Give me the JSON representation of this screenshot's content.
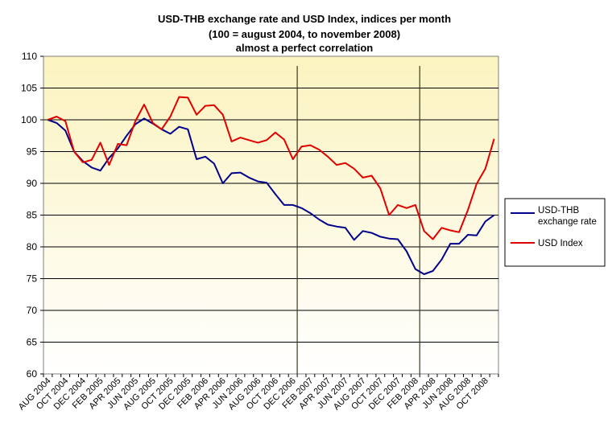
{
  "chart_data": {
    "type": "line",
    "title_lines": [
      "USD-THB exchange rate and USD Index, indices per month",
      "(100 = august 2004, to november 2008)",
      "almost a perfect  correlation"
    ],
    "xlabel": "",
    "ylabel": "",
    "ylim": [
      60,
      110
    ],
    "yticks": [
      60,
      65,
      70,
      75,
      80,
      85,
      90,
      95,
      100,
      105,
      110
    ],
    "grid": "horizontal",
    "legend_position": "right",
    "vertical_markers": [
      "JAN 2007",
      "MAR 2008"
    ],
    "x_tick_labels": [
      "AUG 2004",
      "OCT 2004",
      "DEC 2004",
      "FEB 2005",
      "APR 2005",
      "JUN 2005",
      "AUG 2005",
      "OCT 2005",
      "DEC 2005",
      "FEB 2006",
      "APR 2006",
      "JUN 2006",
      "AUG 2006",
      "OCT 2006",
      "DEC 2006",
      "FEB 2007",
      "APR 2007",
      "JUN 2007",
      "AUG 2007",
      "OCT 2007",
      "DEC 2007",
      "FEB 2008",
      "APR 2008",
      "JUN 2008",
      "AUG 2008",
      "OCT 2008"
    ],
    "x": [
      "AUG 2004",
      "SEP 2004",
      "OCT 2004",
      "NOV 2004",
      "DEC 2004",
      "JAN 2005",
      "FEB 2005",
      "MAR 2005",
      "APR 2005",
      "MAY 2005",
      "JUN 2005",
      "JUL 2005",
      "AUG 2005",
      "SEP 2005",
      "OCT 2005",
      "NOV 2005",
      "DEC 2005",
      "JAN 2006",
      "FEB 2006",
      "MAR 2006",
      "APR 2006",
      "MAY 2006",
      "JUN 2006",
      "JUL 2006",
      "AUG 2006",
      "SEP 2006",
      "OCT 2006",
      "NOV 2006",
      "DEC 2006",
      "JAN 2007",
      "FEB 2007",
      "MAR 2007",
      "APR 2007",
      "MAY 2007",
      "JUN 2007",
      "JUL 2007",
      "AUG 2007",
      "SEP 2007",
      "OCT 2007",
      "NOV 2007",
      "DEC 2007",
      "JAN 2008",
      "FEB 2008",
      "MAR 2008",
      "APR 2008",
      "MAY 2008",
      "JUN 2008",
      "JUL 2008",
      "AUG 2008",
      "SEP 2008",
      "OCT 2008",
      "NOV 2008"
    ],
    "series": [
      {
        "name": "USD-THB exchange rate",
        "color": "#00008b",
        "values": [
          100.0,
          99.5,
          98.3,
          95.0,
          93.5,
          92.5,
          92.0,
          94.0,
          95.5,
          97.5,
          99.3,
          100.2,
          99.4,
          98.5,
          97.8,
          98.9,
          98.5,
          93.8,
          94.2,
          93.1,
          90.0,
          91.6,
          91.7,
          90.9,
          90.3,
          90.1,
          88.3,
          86.6,
          86.6,
          86.1,
          85.3,
          84.3,
          83.5,
          83.2,
          83.0,
          81.1,
          82.5,
          82.2,
          81.6,
          81.3,
          81.2,
          79.3,
          76.5,
          75.7,
          76.2,
          78.0,
          80.5,
          80.5,
          81.9,
          81.8,
          84.0,
          85.0
        ]
      },
      {
        "name": "USD Index",
        "color": "#e00000",
        "values": [
          100.0,
          100.5,
          99.8,
          95.0,
          93.3,
          93.7,
          96.4,
          92.9,
          96.2,
          96.0,
          99.8,
          102.4,
          99.5,
          98.5,
          100.5,
          103.6,
          103.5,
          100.8,
          102.2,
          102.3,
          100.8,
          96.6,
          97.2,
          96.8,
          96.4,
          96.8,
          98.0,
          96.9,
          93.8,
          95.8,
          96.0,
          95.3,
          94.2,
          92.9,
          93.2,
          92.3,
          90.9,
          91.2,
          89.2,
          85.0,
          86.6,
          86.1,
          86.6,
          82.5,
          81.2,
          83.0,
          82.6,
          82.3,
          85.8,
          89.9,
          92.3,
          97.0
        ]
      }
    ]
  }
}
